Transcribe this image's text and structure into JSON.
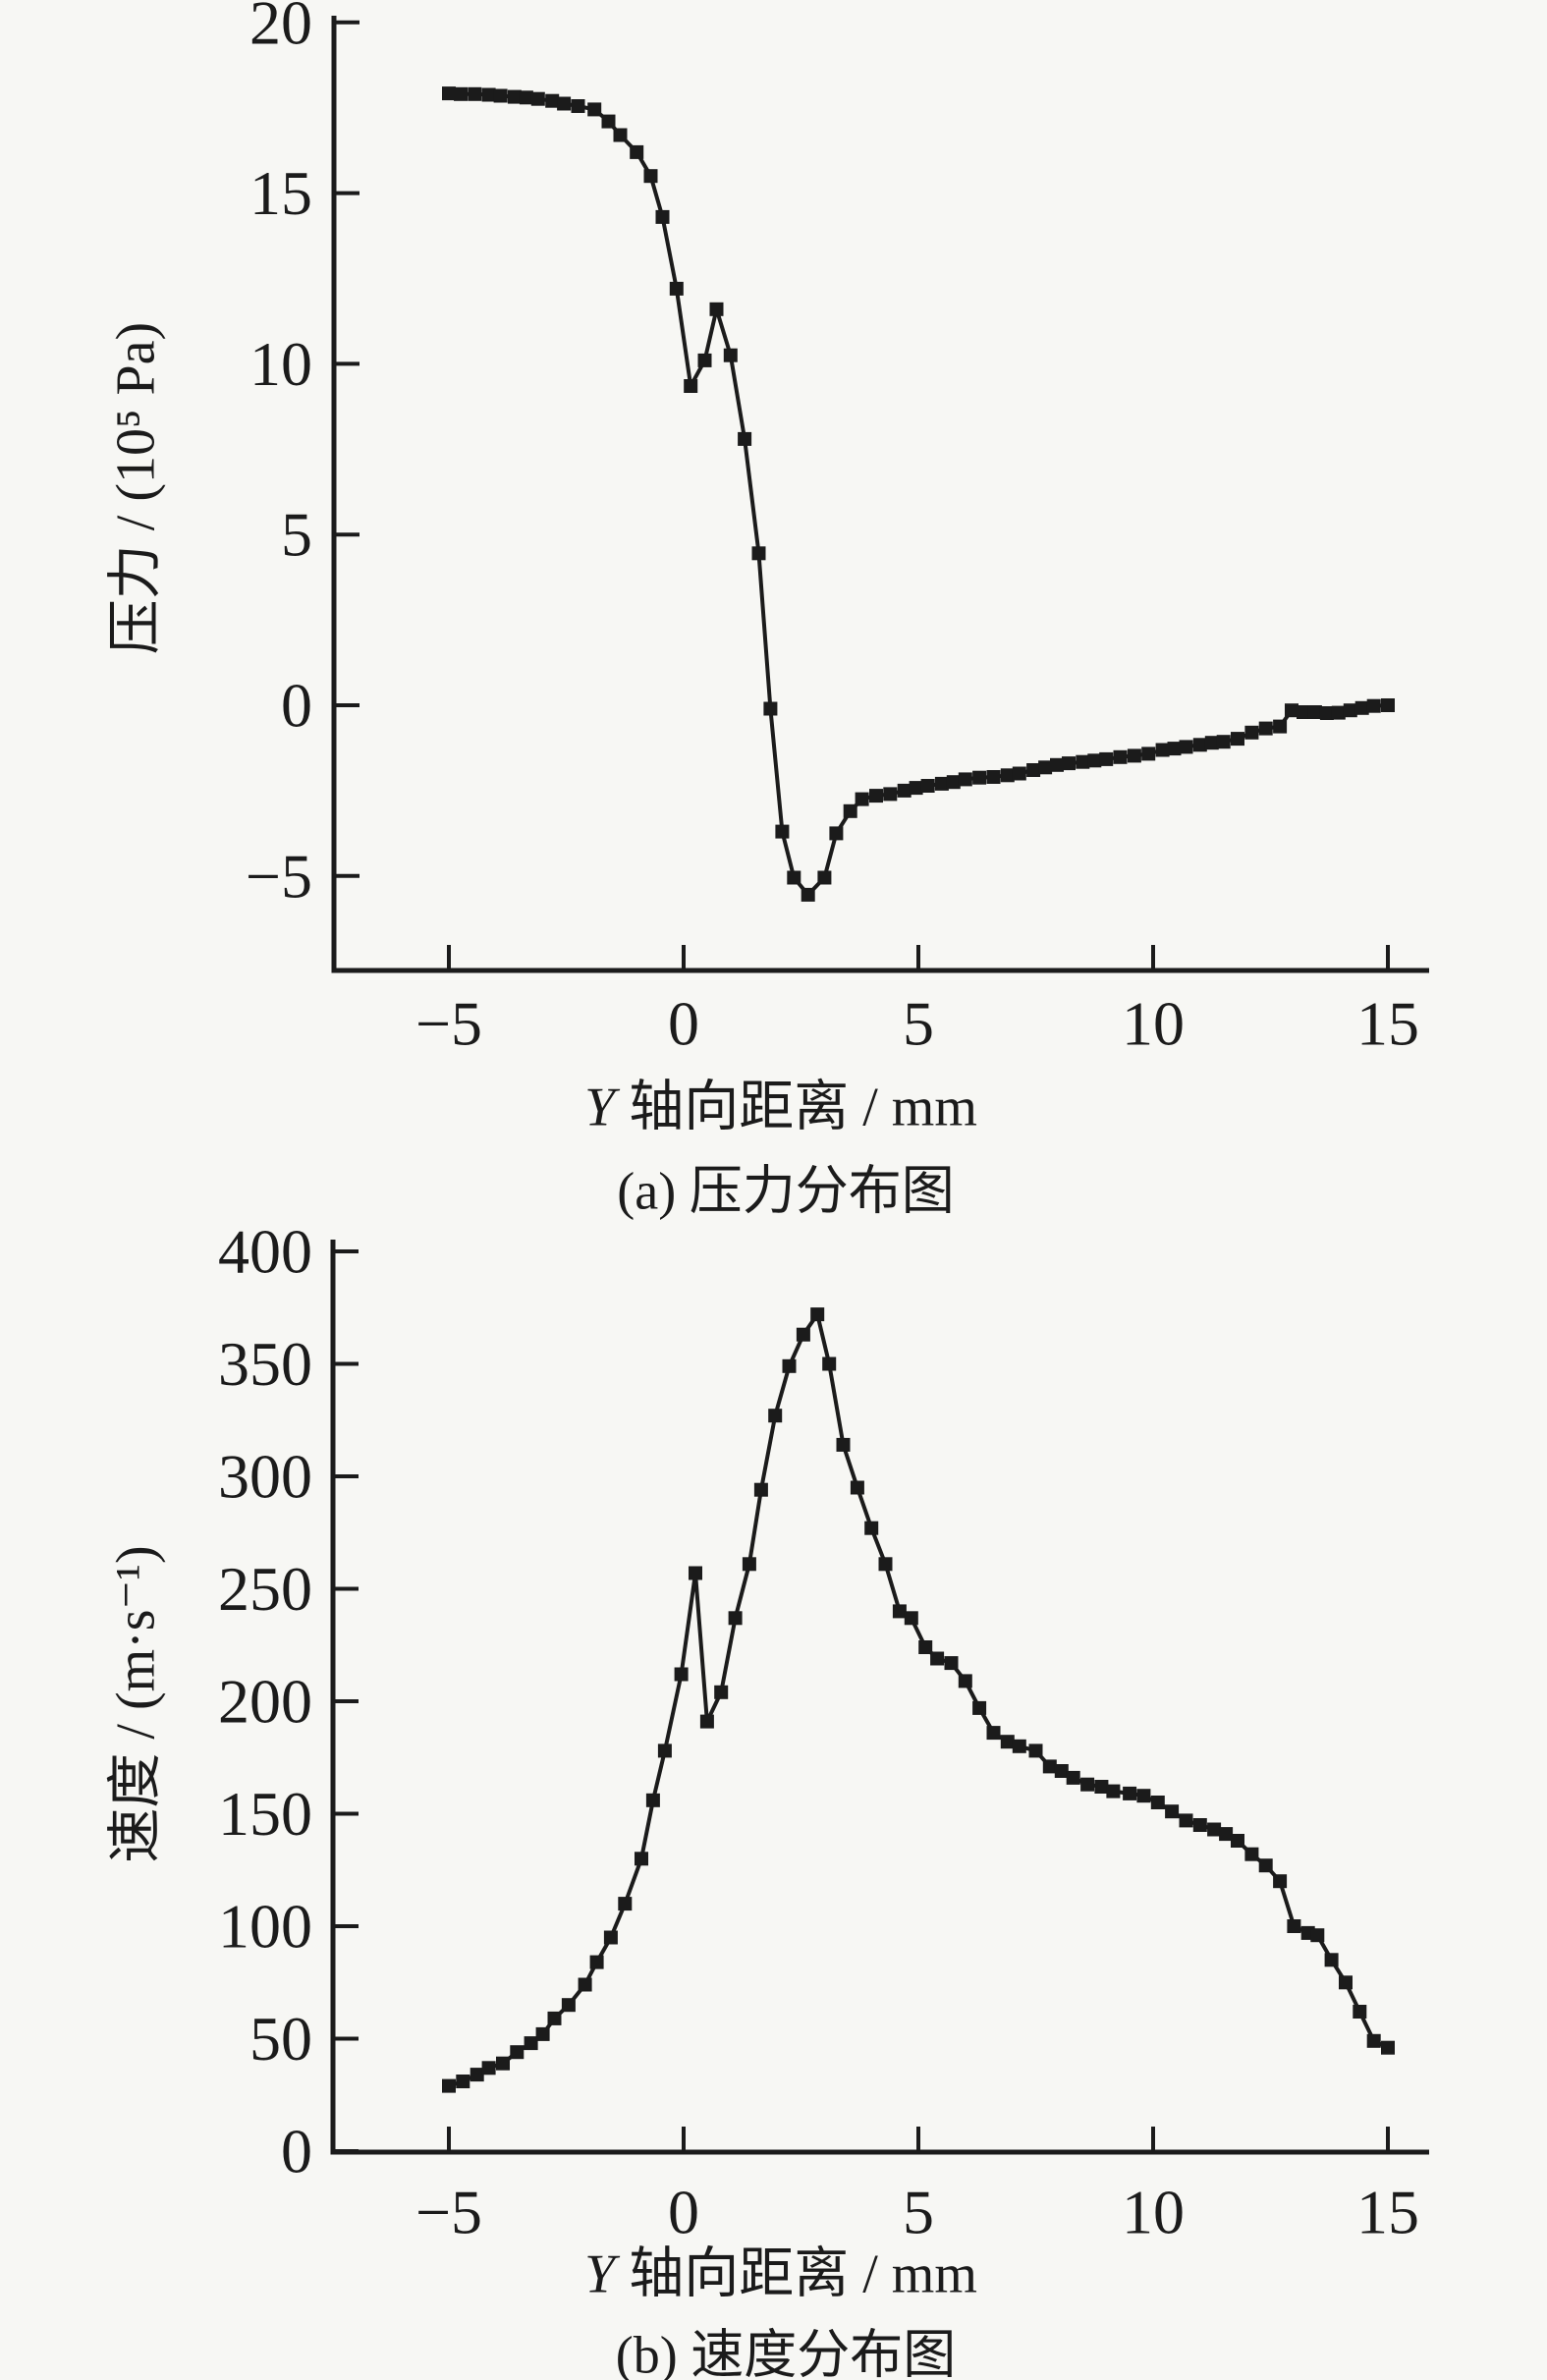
{
  "page": {
    "background": "#f7f7f4",
    "ink": "#1b1b1b"
  },
  "chart_data": [
    {
      "type": "line",
      "title": "(a) 压力分布图",
      "xlabel": "Y 轴向距离 / mm",
      "xlabel_var": "Y",
      "xlabel_rest": " 轴向距离 / mm",
      "ylabel": "压力 / (10⁵ Pa)",
      "xlim": [
        -7.5,
        16
      ],
      "ylim": [
        -7.8,
        20.2
      ],
      "x_ticks": [
        -5,
        0,
        5,
        10,
        15
      ],
      "x_tick_labels": [
        "−5",
        "0",
        "5",
        "10",
        "15"
      ],
      "y_ticks": [
        20,
        15,
        10,
        5,
        0,
        -5
      ],
      "y_tick_labels": [
        "20",
        "15",
        "10",
        "5",
        "0",
        "−5"
      ],
      "grid": false,
      "legend": null,
      "marker": "filled-square",
      "line_color": "#1b1b1b",
      "series": [
        {
          "name": "压力",
          "points": [
            [
              -5.0,
              17.92
            ],
            [
              -4.75,
              17.9
            ],
            [
              -4.45,
              17.9
            ],
            [
              -4.15,
              17.88
            ],
            [
              -3.9,
              17.85
            ],
            [
              -3.6,
              17.82
            ],
            [
              -3.35,
              17.8
            ],
            [
              -3.1,
              17.76
            ],
            [
              -2.8,
              17.7
            ],
            [
              -2.55,
              17.62
            ],
            [
              -2.25,
              17.55
            ],
            [
              -1.9,
              17.45
            ],
            [
              -1.6,
              17.1
            ],
            [
              -1.35,
              16.7
            ],
            [
              -1.0,
              16.2
            ],
            [
              -0.7,
              15.5
            ],
            [
              -0.45,
              14.3
            ],
            [
              -0.15,
              12.2
            ],
            [
              0.15,
              9.35
            ],
            [
              0.45,
              10.1
            ],
            [
              0.7,
              11.6
            ],
            [
              1.0,
              10.25
            ],
            [
              1.3,
              7.8
            ],
            [
              1.6,
              4.45
            ],
            [
              1.85,
              -0.1
            ],
            [
              2.1,
              -3.7
            ],
            [
              2.35,
              -5.05
            ],
            [
              2.65,
              -5.55
            ],
            [
              3.0,
              -5.05
            ],
            [
              3.25,
              -3.75
            ],
            [
              3.55,
              -3.1
            ],
            [
              3.8,
              -2.75
            ],
            [
              4.1,
              -2.65
            ],
            [
              4.4,
              -2.6
            ],
            [
              4.7,
              -2.5
            ],
            [
              4.95,
              -2.42
            ],
            [
              5.2,
              -2.36
            ],
            [
              5.5,
              -2.3
            ],
            [
              5.75,
              -2.25
            ],
            [
              6.0,
              -2.17
            ],
            [
              6.3,
              -2.12
            ],
            [
              6.6,
              -2.1
            ],
            [
              6.9,
              -2.05
            ],
            [
              7.15,
              -2.0
            ],
            [
              7.45,
              -1.9
            ],
            [
              7.7,
              -1.82
            ],
            [
              7.95,
              -1.75
            ],
            [
              8.2,
              -1.7
            ],
            [
              8.5,
              -1.66
            ],
            [
              8.75,
              -1.62
            ],
            [
              9.0,
              -1.58
            ],
            [
              9.3,
              -1.52
            ],
            [
              9.6,
              -1.48
            ],
            [
              9.9,
              -1.42
            ],
            [
              10.2,
              -1.31
            ],
            [
              10.45,
              -1.27
            ],
            [
              10.7,
              -1.22
            ],
            [
              11.0,
              -1.16
            ],
            [
              11.25,
              -1.1
            ],
            [
              11.5,
              -1.07
            ],
            [
              11.8,
              -0.98
            ],
            [
              12.1,
              -0.8
            ],
            [
              12.4,
              -0.68
            ],
            [
              12.7,
              -0.62
            ],
            [
              12.95,
              -0.15
            ],
            [
              13.2,
              -0.2
            ],
            [
              13.45,
              -0.2
            ],
            [
              13.7,
              -0.23
            ],
            [
              13.95,
              -0.22
            ],
            [
              14.2,
              -0.15
            ],
            [
              14.45,
              -0.08
            ],
            [
              14.7,
              -0.02
            ],
            [
              15.0,
              0.0
            ]
          ]
        }
      ]
    },
    {
      "type": "line",
      "title": "(b) 速度分布图",
      "xlabel": "Y 轴向距离 / mm",
      "xlabel_var": "Y",
      "xlabel_rest": " 轴向距离 / mm",
      "ylabel": "速度 / (m·s⁻¹)",
      "xlim": [
        -7.5,
        16
      ],
      "ylim": [
        0,
        403
      ],
      "x_ticks": [
        -5,
        0,
        5,
        10,
        15
      ],
      "x_tick_labels": [
        "−5",
        "0",
        "5",
        "10",
        "15"
      ],
      "y_ticks": [
        400,
        350,
        300,
        250,
        200,
        150,
        100,
        50,
        0
      ],
      "y_tick_labels": [
        "400",
        "350",
        "300",
        "250",
        "200",
        "150",
        "100",
        "50",
        "0"
      ],
      "grid": false,
      "legend": null,
      "marker": "filled-square",
      "line_color": "#1b1b1b",
      "series": [
        {
          "name": "速度",
          "points": [
            [
              -5.0,
              29
            ],
            [
              -4.7,
              31
            ],
            [
              -4.4,
              34
            ],
            [
              -4.15,
              37
            ],
            [
              -3.85,
              39
            ],
            [
              -3.55,
              44
            ],
            [
              -3.25,
              48
            ],
            [
              -3.0,
              52
            ],
            [
              -2.75,
              59
            ],
            [
              -2.45,
              65
            ],
            [
              -2.1,
              74
            ],
            [
              -1.85,
              84
            ],
            [
              -1.55,
              95
            ],
            [
              -1.25,
              110
            ],
            [
              -0.9,
              130
            ],
            [
              -0.65,
              156
            ],
            [
              -0.4,
              178
            ],
            [
              -0.05,
              212
            ],
            [
              0.25,
              257
            ],
            [
              0.5,
              191
            ],
            [
              0.8,
              204
            ],
            [
              1.1,
              237
            ],
            [
              1.4,
              261
            ],
            [
              1.65,
              294
            ],
            [
              1.95,
              327
            ],
            [
              2.25,
              349
            ],
            [
              2.55,
              363
            ],
            [
              2.85,
              372
            ],
            [
              3.1,
              350
            ],
            [
              3.4,
              314
            ],
            [
              3.7,
              295
            ],
            [
              4.0,
              277
            ],
            [
              4.3,
              261
            ],
            [
              4.6,
              240
            ],
            [
              4.85,
              237
            ],
            [
              5.15,
              224
            ],
            [
              5.4,
              219
            ],
            [
              5.7,
              217
            ],
            [
              6.0,
              209
            ],
            [
              6.3,
              197
            ],
            [
              6.6,
              186
            ],
            [
              6.9,
              182
            ],
            [
              7.15,
              180
            ],
            [
              7.5,
              178
            ],
            [
              7.8,
              171
            ],
            [
              8.05,
              169
            ],
            [
              8.3,
              166
            ],
            [
              8.6,
              163
            ],
            [
              8.9,
              162
            ],
            [
              9.15,
              160
            ],
            [
              9.5,
              159
            ],
            [
              9.8,
              158
            ],
            [
              10.1,
              155
            ],
            [
              10.4,
              151
            ],
            [
              10.7,
              147
            ],
            [
              11.0,
              145
            ],
            [
              11.3,
              143
            ],
            [
              11.55,
              141
            ],
            [
              11.8,
              138
            ],
            [
              12.1,
              132
            ],
            [
              12.4,
              127
            ],
            [
              12.7,
              120
            ],
            [
              13.0,
              100
            ],
            [
              13.3,
              97
            ],
            [
              13.5,
              96
            ],
            [
              13.8,
              85
            ],
            [
              14.1,
              75
            ],
            [
              14.4,
              62
            ],
            [
              14.7,
              49
            ],
            [
              15.0,
              46
            ]
          ]
        }
      ]
    }
  ]
}
